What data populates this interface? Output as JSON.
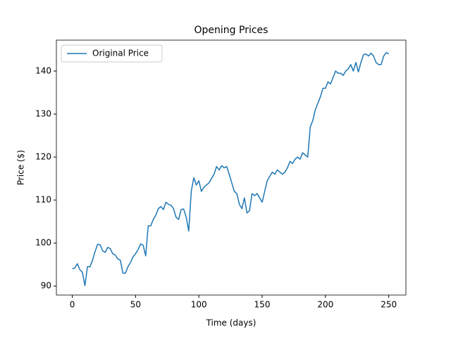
{
  "chart_data": {
    "type": "line",
    "title": "Opening Prices",
    "xlabel": "Time (days)",
    "ylabel": "Price ($)",
    "x": [
      0,
      2,
      4,
      6,
      8,
      10,
      12,
      14,
      16,
      18,
      20,
      22,
      24,
      26,
      28,
      30,
      32,
      34,
      36,
      38,
      40,
      42,
      44,
      46,
      48,
      50,
      52,
      54,
      56,
      58,
      60,
      62,
      64,
      66,
      68,
      70,
      72,
      74,
      76,
      78,
      80,
      82,
      84,
      86,
      88,
      90,
      92,
      94,
      96,
      98,
      100,
      102,
      104,
      106,
      108,
      110,
      112,
      114,
      116,
      118,
      120,
      122,
      124,
      126,
      128,
      130,
      132,
      134,
      136,
      138,
      140,
      142,
      144,
      146,
      148,
      150,
      152,
      154,
      156,
      158,
      160,
      162,
      164,
      166,
      168,
      170,
      172,
      174,
      176,
      178,
      180,
      182,
      184,
      186,
      188,
      190,
      192,
      194,
      196,
      198,
      200,
      202,
      204,
      206,
      208,
      210,
      212,
      214,
      216,
      218,
      220,
      222,
      224,
      226,
      228,
      230,
      232,
      234,
      236,
      238,
      240,
      242,
      244,
      246,
      248,
      250
    ],
    "series": [
      {
        "name": "Original Price",
        "color": "#1f77b4",
        "values": [
          94,
          94.2,
          95.2,
          93.8,
          93.2,
          90.1,
          94.5,
          94.5,
          96,
          98,
          99.7,
          99.6,
          98.2,
          97.8,
          99,
          98.7,
          97.5,
          97.2,
          96.3,
          96,
          93,
          93,
          94.5,
          95.5,
          96.8,
          97.5,
          98.5,
          99.8,
          99.5,
          97,
          104,
          104,
          105.5,
          106.5,
          108,
          108.5,
          107.8,
          109.5,
          109,
          108.8,
          108,
          106,
          105.5,
          107.8,
          107.9,
          106,
          102.8,
          112,
          115.2,
          113.5,
          114.5,
          112,
          113,
          113.5,
          114,
          115,
          116,
          117.8,
          117,
          118,
          117.5,
          117.8,
          116,
          114,
          112,
          111.5,
          109,
          108,
          110.5,
          107,
          107.5,
          111.5,
          111,
          111.5,
          110.5,
          109.5,
          112,
          114.5,
          115.5,
          116.5,
          116,
          117,
          116.5,
          116,
          116.5,
          117.5,
          119,
          118.5,
          119.5,
          120,
          119.5,
          121,
          120.5,
          120,
          127,
          128.5,
          131,
          132.5,
          134,
          136,
          136,
          137.5,
          137,
          138.5,
          140,
          139.5,
          139.5,
          139,
          140,
          140.5,
          141.5,
          140,
          142,
          139.8,
          142,
          143.8,
          144,
          143.5,
          144.2,
          143.5,
          142,
          141.5,
          141.5,
          143.5,
          144.3,
          144
        ]
      }
    ],
    "xlim": [
      -12.55,
      263.55
    ],
    "xticks": [
      0,
      50,
      100,
      150,
      200,
      250
    ],
    "ylim": [
      87.9,
      147.2
    ],
    "yticks": [
      90,
      100,
      110,
      120,
      130,
      140
    ],
    "legend": "upper left"
  }
}
